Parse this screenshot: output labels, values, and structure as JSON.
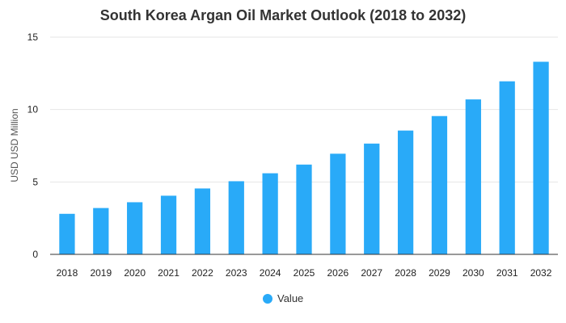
{
  "chart_data": {
    "type": "bar",
    "title": "South Korea Argan Oil Market Outlook (2018 to 2032)",
    "ylabel": "USD USD Million",
    "xlabel": "",
    "categories": [
      "2018",
      "2019",
      "2020",
      "2021",
      "2022",
      "2023",
      "2024",
      "2025",
      "2026",
      "2027",
      "2028",
      "2029",
      "2030",
      "2031",
      "2032"
    ],
    "series": [
      {
        "name": "Value",
        "values": [
          2.8,
          3.2,
          3.6,
          4.05,
          4.55,
          5.05,
          5.6,
          6.2,
          6.95,
          7.65,
          8.55,
          9.55,
          10.7,
          11.95,
          13.3
        ]
      }
    ],
    "ylim": [
      0,
      15
    ],
    "yticks": [
      "0",
      "5",
      "10",
      "15"
    ],
    "grid": true,
    "legend": "bottom",
    "colors": {
      "bar": "#29aaf8",
      "grid": "#e6e6e6",
      "axis": "#333333"
    }
  }
}
